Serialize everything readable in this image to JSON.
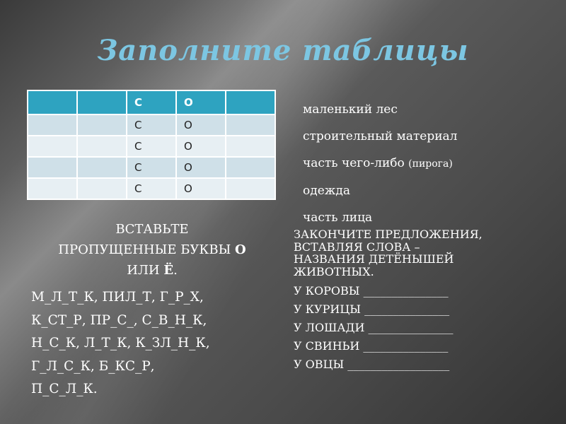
{
  "title": "Заполните таблицы",
  "table": {
    "header": [
      "",
      "",
      "С",
      "О",
      ""
    ],
    "rows": [
      [
        "",
        "",
        "С",
        "О",
        ""
      ],
      [
        "",
        "",
        "С",
        "О",
        ""
      ],
      [
        "",
        "",
        "С",
        "О",
        ""
      ],
      [
        "",
        "",
        "С",
        "О",
        ""
      ]
    ]
  },
  "words": [
    {
      "text": "маленький лес",
      "note": ""
    },
    {
      "text": "строительный материал",
      "note": ""
    },
    {
      "text": "часть чего-либо",
      "note": "(пирога)"
    },
    {
      "text": "одежда",
      "note": ""
    },
    {
      "text": "часть лица",
      "note": ""
    }
  ],
  "task1": {
    "heading_line1": "ВСТАВЬТЕ",
    "heading_line2": "ПРОПУЩЕННЫЕ БУКВЫ ",
    "heading_bold1": "О",
    "heading_line3": "ИЛИ ",
    "heading_bold2": "Ё",
    "heading_end": ".",
    "lines": [
      "М_Л_Т_К, ПИЛ_Т, Г_Р_Х,",
      "К_СТ_Р, ПР_С_, С_В_Н_К,",
      "Н_С_К, Л_Т_К, К_ЗЛ_Н_К,",
      "Г_Л_С_К, Б_КС_Р,",
      "П_С_Л_К."
    ]
  },
  "task2": {
    "heading": [
      "ЗАКОНЧИТЕ ПРЕДЛОЖЕНИЯ,",
      "ВСТАВЛЯЯ СЛОВА –",
      "НАЗВАНИЯ ДЕТЁНЫШЕЙ",
      "ЖИВОТНЫХ."
    ],
    "lines": [
      "У КОРОВЫ _______________",
      "У КУРИЦЫ _______________",
      "У ЛОШАДИ _______________",
      "У СВИНЬИ _______________",
      "У ОВЦЫ __________________"
    ]
  }
}
